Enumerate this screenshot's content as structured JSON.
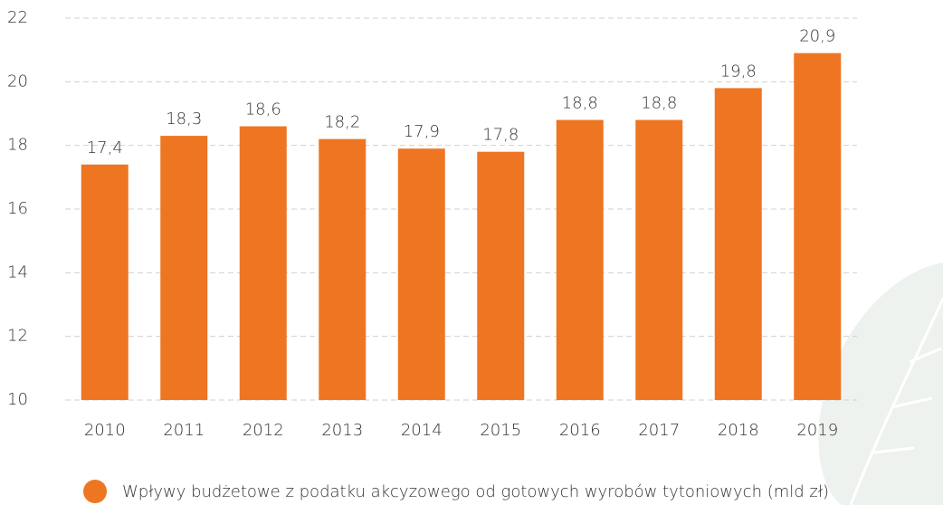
{
  "chart_data": {
    "type": "bar",
    "categories": [
      "2010",
      "2011",
      "2012",
      "2013",
      "2014",
      "2015",
      "2016",
      "2017",
      "2018",
      "2019"
    ],
    "series": [
      {
        "name": "Wpływy budżetowe z podatku akcyzowego od gotowych wyrobów tytoniowych (mld zł)",
        "color": "#ee7623",
        "values": [
          17.4,
          18.3,
          18.6,
          18.2,
          17.9,
          17.8,
          18.8,
          18.8,
          19.8,
          20.9
        ],
        "value_labels": [
          "17,4",
          "18,3",
          "18,6",
          "18,2",
          "17,9",
          "17,8",
          "18,8",
          "18,8",
          "19,8",
          "20,9"
        ]
      }
    ],
    "ylim": [
      10,
      22
    ],
    "yticks": [
      10,
      12,
      14,
      16,
      18,
      20,
      22
    ],
    "grid": true,
    "legend": "bottom"
  }
}
